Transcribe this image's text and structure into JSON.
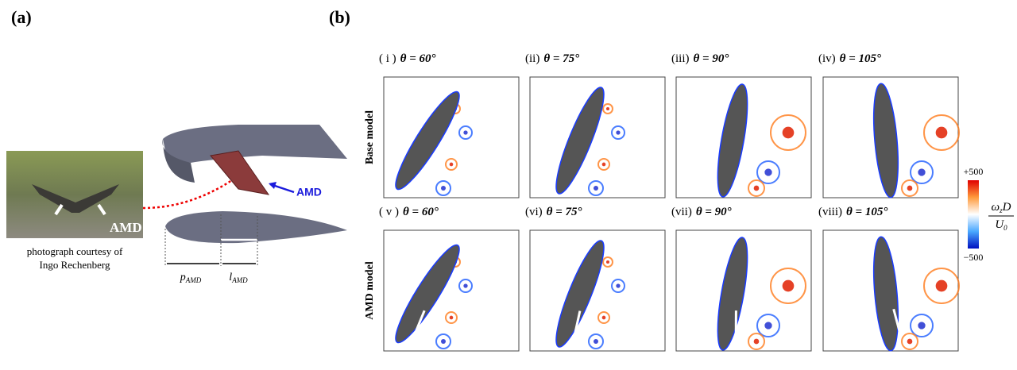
{
  "panel_a": {
    "tag": "(a)",
    "photo_label": "AMD",
    "caption": [
      "photograph courtesy of",
      "Ingo Rechenberg"
    ],
    "arrow_label": "AMD",
    "dims": [
      {
        "main": "p",
        "sub": "AMD"
      },
      {
        "main": "l",
        "sub": "AMD"
      }
    ]
  },
  "panel_b": {
    "tag": "(b)",
    "rows": [
      {
        "label": "Base model",
        "panels": [
          {
            "roman": "( i )",
            "angle": "θ = 60°"
          },
          {
            "roman": "(ii)",
            "angle": "θ = 75°"
          },
          {
            "roman": "(iii)",
            "angle": "θ = 90°"
          },
          {
            "roman": "(iv)",
            "angle": "θ = 105°"
          }
        ]
      },
      {
        "label": "AMD model",
        "panels": [
          {
            "roman": "( v )",
            "angle": "θ = 60°"
          },
          {
            "roman": "(vi)",
            "angle": "θ = 75°"
          },
          {
            "roman": "(vii)",
            "angle": "θ = 90°"
          },
          {
            "roman": "(viii)",
            "angle": "θ = 105°"
          }
        ]
      }
    ],
    "colorbar": {
      "top": "+500",
      "bottom": "−500",
      "numerator": [
        "ω",
        "z",
        "D"
      ],
      "denominator": [
        "U",
        "0"
      ]
    }
  }
}
